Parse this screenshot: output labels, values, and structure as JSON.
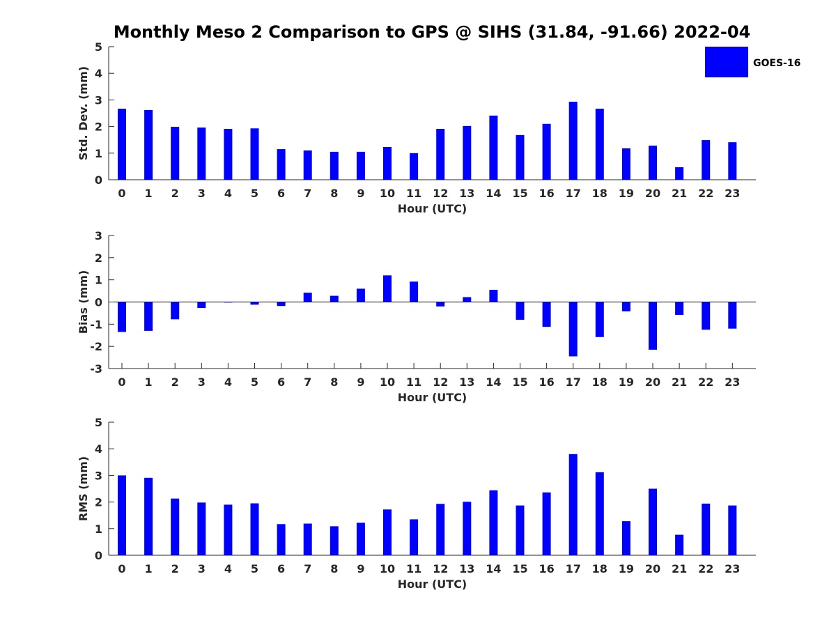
{
  "chart_data": {
    "type": "bar",
    "title": "Monthly Meso 2 Comparison to GPS @ SIHS (31.84, -91.66) 2022-04",
    "legend": {
      "label": "GOES-16",
      "placement": "top-right"
    },
    "colors": {
      "bar": "#0000ff",
      "axis": "#262626",
      "background": "#ffffff"
    },
    "categories": [
      "0",
      "1",
      "2",
      "3",
      "4",
      "5",
      "6",
      "7",
      "8",
      "9",
      "10",
      "11",
      "12",
      "13",
      "14",
      "15",
      "16",
      "17",
      "18",
      "19",
      "20",
      "21",
      "22",
      "23"
    ],
    "panels": [
      {
        "ylabel": "Std. Dev. (mm)",
        "xlabel": "Hour (UTC)",
        "ylim": [
          0,
          5
        ],
        "yticks": [
          "0",
          "1",
          "2",
          "3",
          "4",
          "5"
        ],
        "series": [
          {
            "name": "GOES-16",
            "values": [
              2.67,
              2.62,
              1.99,
              1.96,
              1.91,
              1.93,
              1.15,
              1.1,
              1.05,
              1.05,
              1.23,
              1.0,
              1.91,
              2.02,
              2.41,
              1.68,
              2.1,
              2.93,
              2.67,
              1.18,
              1.28,
              0.47,
              1.49,
              1.41
            ]
          }
        ]
      },
      {
        "ylabel": "Bias (mm)",
        "xlabel": "Hour (UTC)",
        "ylim": [
          -3,
          3
        ],
        "yticks": [
          "-3",
          "-2",
          "-1",
          "0",
          "1",
          "2",
          "3"
        ],
        "series": [
          {
            "name": "GOES-16",
            "values": [
              -1.35,
              -1.3,
              -0.78,
              -0.27,
              -0.02,
              -0.12,
              -0.18,
              0.42,
              0.28,
              0.6,
              1.2,
              0.92,
              -0.2,
              0.22,
              0.55,
              -0.8,
              -1.12,
              -2.45,
              -1.58,
              -0.42,
              -2.15,
              -0.58,
              -1.25,
              -1.2
            ]
          }
        ]
      },
      {
        "ylabel": "RMS (mm)",
        "xlabel": "Hour (UTC)",
        "ylim": [
          0,
          5
        ],
        "yticks": [
          "0",
          "1",
          "2",
          "3",
          "4",
          "5"
        ],
        "series": [
          {
            "name": "GOES-16",
            "values": [
              3.0,
              2.91,
              2.13,
              1.98,
              1.9,
              1.95,
              1.17,
              1.19,
              1.09,
              1.22,
              1.72,
              1.35,
              1.93,
              2.01,
              2.44,
              1.87,
              2.36,
              3.8,
              3.12,
              1.28,
              2.5,
              0.77,
              1.94,
              1.87
            ]
          }
        ]
      }
    ]
  }
}
